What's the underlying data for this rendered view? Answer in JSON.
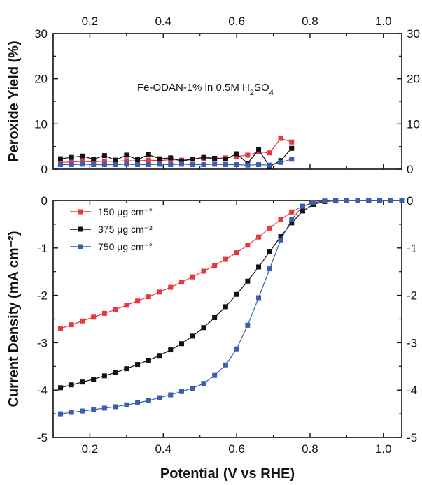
{
  "chart_data": [
    {
      "type": "line",
      "panel": "top",
      "ylabel": "Peroxide Yield (%)",
      "annotation": {
        "prefix": "Fe-ODAN-1% in 0.5M H",
        "sub1": "2",
        "mid": "SO",
        "sub2": "4"
      },
      "xlim": [
        0.1,
        1.05
      ],
      "ylim": [
        0,
        30
      ],
      "x_ticks": [
        "0.2",
        "0.4",
        "0.6",
        "0.8",
        "1.0"
      ],
      "y_ticks": [
        "0",
        "10",
        "20",
        "30"
      ],
      "series": [
        {
          "name": "150 μg cm⁻²",
          "color": "#e8383d",
          "x": [
            0.12,
            0.15,
            0.18,
            0.21,
            0.24,
            0.27,
            0.3,
            0.33,
            0.36,
            0.39,
            0.42,
            0.45,
            0.48,
            0.51,
            0.54,
            0.57,
            0.6,
            0.63,
            0.66,
            0.69,
            0.72,
            0.75
          ],
          "y": [
            1.5,
            1.6,
            1.7,
            1.6,
            1.8,
            1.7,
            1.9,
            1.8,
            2.0,
            1.9,
            2.1,
            2.0,
            2.2,
            2.3,
            2.4,
            2.5,
            2.8,
            3.1,
            3.8,
            3.6,
            6.8,
            6.0
          ]
        },
        {
          "name": "375 μg cm⁻²",
          "color": "#111111",
          "x": [
            0.12,
            0.15,
            0.18,
            0.21,
            0.24,
            0.27,
            0.3,
            0.33,
            0.36,
            0.39,
            0.42,
            0.45,
            0.48,
            0.51,
            0.54,
            0.57,
            0.6,
            0.63,
            0.66,
            0.69,
            0.72,
            0.75
          ],
          "y": [
            2.3,
            2.6,
            2.9,
            2.2,
            3.0,
            2.0,
            3.1,
            2.1,
            3.2,
            2.3,
            2.5,
            1.8,
            2.2,
            2.6,
            2.4,
            2.2,
            3.4,
            1.3,
            4.3,
            0.6,
            1.9,
            4.6
          ]
        },
        {
          "name": "750 μg cm⁻²",
          "color": "#3a5fb0",
          "x": [
            0.12,
            0.15,
            0.18,
            0.21,
            0.24,
            0.27,
            0.3,
            0.33,
            0.36,
            0.39,
            0.42,
            0.45,
            0.48,
            0.51,
            0.54,
            0.57,
            0.6,
            0.63,
            0.66,
            0.69,
            0.72,
            0.75
          ],
          "y": [
            1.0,
            1.0,
            1.1,
            1.0,
            1.0,
            1.0,
            1.1,
            1.0,
            1.0,
            1.1,
            1.0,
            1.1,
            1.0,
            1.0,
            1.1,
            1.0,
            1.0,
            0.9,
            1.0,
            0.9,
            1.5,
            2.2
          ]
        }
      ]
    },
    {
      "type": "line",
      "panel": "bottom",
      "ylabel": "Current Density (mA cm⁻²)",
      "xlabel": "Potential (V vs RHE)",
      "xlim": [
        0.1,
        1.05
      ],
      "ylim": [
        -5,
        0
      ],
      "x_ticks": [
        "0.2",
        "0.4",
        "0.6",
        "0.8",
        "1.0"
      ],
      "y_ticks": [
        "0",
        "-1",
        "-2",
        "-3",
        "-4",
        "-5"
      ],
      "legend": {
        "position": "top-left"
      },
      "series": [
        {
          "name": "150 μg cm⁻²",
          "color": "#e8383d",
          "x": [
            0.12,
            0.15,
            0.18,
            0.21,
            0.24,
            0.27,
            0.3,
            0.33,
            0.36,
            0.39,
            0.42,
            0.45,
            0.48,
            0.51,
            0.54,
            0.57,
            0.6,
            0.63,
            0.66,
            0.69,
            0.72,
            0.75,
            0.78,
            0.81,
            0.84,
            0.87,
            0.9,
            0.93,
            0.96,
            0.99,
            1.02,
            1.05
          ],
          "y": [
            -2.7,
            -2.62,
            -2.54,
            -2.46,
            -2.38,
            -2.3,
            -2.21,
            -2.12,
            -2.03,
            -1.93,
            -1.83,
            -1.72,
            -1.61,
            -1.49,
            -1.37,
            -1.24,
            -1.1,
            -0.94,
            -0.77,
            -0.58,
            -0.4,
            -0.24,
            -0.12,
            -0.05,
            -0.02,
            -0.01,
            0,
            0,
            0,
            0,
            0,
            0
          ]
        },
        {
          "name": "375 μg cm⁻²",
          "color": "#111111",
          "x": [
            0.12,
            0.15,
            0.18,
            0.21,
            0.24,
            0.27,
            0.3,
            0.33,
            0.36,
            0.39,
            0.42,
            0.45,
            0.48,
            0.51,
            0.54,
            0.57,
            0.6,
            0.63,
            0.66,
            0.69,
            0.72,
            0.75,
            0.78,
            0.81,
            0.84,
            0.87,
            0.9,
            0.93,
            0.96,
            0.99,
            1.02,
            1.05
          ],
          "y": [
            -3.95,
            -3.89,
            -3.83,
            -3.77,
            -3.7,
            -3.63,
            -3.55,
            -3.46,
            -3.37,
            -3.27,
            -3.15,
            -3.02,
            -2.86,
            -2.68,
            -2.47,
            -2.24,
            -1.98,
            -1.7,
            -1.4,
            -1.08,
            -0.76,
            -0.47,
            -0.22,
            -0.08,
            -0.02,
            0,
            0,
            0,
            0,
            0,
            0,
            0
          ]
        },
        {
          "name": "750 μg cm⁻²",
          "color": "#3a5fb0",
          "x": [
            0.12,
            0.15,
            0.18,
            0.21,
            0.24,
            0.27,
            0.3,
            0.33,
            0.36,
            0.39,
            0.42,
            0.45,
            0.48,
            0.51,
            0.54,
            0.57,
            0.6,
            0.63,
            0.66,
            0.69,
            0.72,
            0.75,
            0.78,
            0.81,
            0.84,
            0.87,
            0.9,
            0.93,
            0.96,
            0.99,
            1.02,
            1.05
          ],
          "y": [
            -4.5,
            -4.47,
            -4.44,
            -4.41,
            -4.38,
            -4.35,
            -4.31,
            -4.27,
            -4.22,
            -4.16,
            -4.1,
            -4.03,
            -3.96,
            -3.86,
            -3.69,
            -3.47,
            -3.13,
            -2.63,
            -2.05,
            -1.44,
            -0.83,
            -0.4,
            -0.12,
            -0.04,
            -0.01,
            0,
            0,
            0,
            0,
            0,
            0,
            0
          ]
        }
      ]
    }
  ]
}
